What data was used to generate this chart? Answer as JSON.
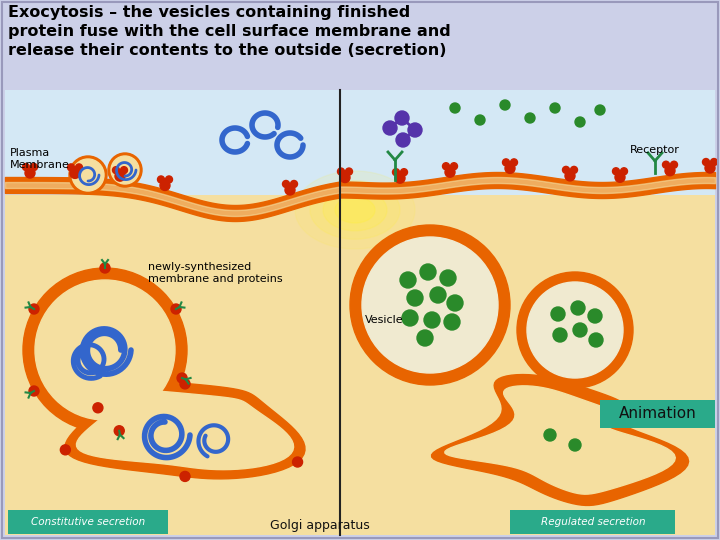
{
  "title_line1": "Exocytosis – the vesicles containing finished",
  "title_line2": "protein fuse with the cell surface membrane and",
  "title_line3": "release their contents to the outside (secretion)",
  "bg_color": "#ccd0e8",
  "title_color": "#000000",
  "membrane_color": "#e86400",
  "cell_interior_color": "#f5dfa0",
  "extracellular_color": "#d4e8f5",
  "vesicle_inner": "#f5dfa0",
  "green_dot_color": "#2a8a2a",
  "label_plasma": "Plasma\nMembrane",
  "label_receptor": "Receptor",
  "label_newly": "newly-synthesized\nmembrane and proteins",
  "label_vesicle": "Vesicle",
  "label_golgi": "Golgi apparatus",
  "label_animation": "Animation",
  "label_constitutive": "Constitutive secretion",
  "label_regulated": "Regulated secretion",
  "teal_color": "#2aaa8a",
  "animation_bg": "#2aaa8a"
}
